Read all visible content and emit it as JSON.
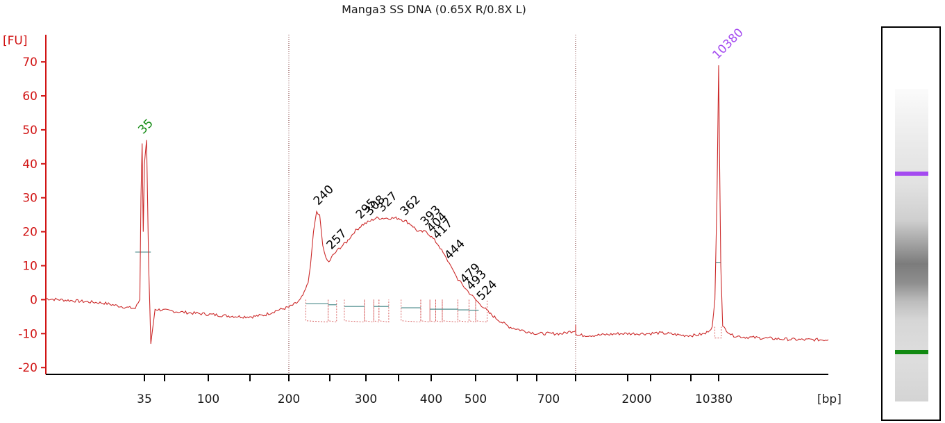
{
  "chart_data": {
    "type": "line",
    "title": "Manga3 SS DNA (0.65X R/0.8X L)",
    "ylabel": "[FU]",
    "xlabel": "[bp]",
    "ylim": [
      -22,
      78
    ],
    "y_ticks": [
      -20,
      -10,
      0,
      10,
      20,
      30,
      40,
      50,
      60,
      70
    ],
    "x_tick_labels": [
      "35",
      "100",
      "200",
      "300",
      "400",
      "500",
      "700",
      "2000",
      "10380"
    ],
    "colors": {
      "trace": "#cc2a2a",
      "axis": "#d11414",
      "lower_marker": "#128a12",
      "upper_marker": "#a44af0",
      "peak_label": "#000000"
    },
    "series": [
      {
        "values": [
          [
            25,
            0.3
          ],
          [
            35,
            -1.0
          ],
          [
            45,
            -1.7
          ],
          [
            55,
            -2.3
          ],
          [
            62,
            -2.6
          ],
          [
            66,
            0
          ],
          [
            67,
            30
          ],
          [
            68,
            46
          ],
          [
            69,
            20
          ],
          [
            70,
            40
          ],
          [
            71,
            47
          ],
          [
            72,
            10
          ],
          [
            73,
            -13
          ],
          [
            75,
            -2.8
          ],
          [
            80,
            -3.2
          ],
          [
            90,
            -3.8
          ],
          [
            100,
            -4.3
          ],
          [
            120,
            -4.7
          ],
          [
            140,
            -5.0
          ],
          [
            155,
            -5.0
          ],
          [
            170,
            -4.5
          ],
          [
            185,
            -3.2
          ],
          [
            200,
            -2.2
          ],
          [
            210,
            -1.0
          ],
          [
            215,
            0
          ],
          [
            220,
            2
          ],
          [
            225,
            5
          ],
          [
            228,
            10
          ],
          [
            232,
            20
          ],
          [
            236,
            26
          ],
          [
            240,
            25
          ],
          [
            244,
            16
          ],
          [
            248,
            12
          ],
          [
            252,
            11
          ],
          [
            257,
            13
          ],
          [
            265,
            15
          ],
          [
            275,
            17
          ],
          [
            285,
            20
          ],
          [
            295,
            22
          ],
          [
            305,
            23
          ],
          [
            315,
            24
          ],
          [
            327,
            24
          ],
          [
            340,
            24
          ],
          [
            350,
            24
          ],
          [
            362,
            23
          ],
          [
            370,
            22
          ],
          [
            380,
            20
          ],
          [
            393,
            20
          ],
          [
            404,
            18
          ],
          [
            417,
            16
          ],
          [
            430,
            13
          ],
          [
            444,
            10
          ],
          [
            460,
            6
          ],
          [
            479,
            3
          ],
          [
            493,
            1
          ],
          [
            510,
            -1
          ],
          [
            524,
            -2
          ],
          [
            545,
            -4
          ],
          [
            575,
            -6
          ],
          [
            610,
            -8
          ],
          [
            650,
            -9
          ],
          [
            700,
            -10
          ],
          [
            740,
            -10
          ],
          [
            760,
            -9
          ],
          [
            762,
            -7
          ],
          [
            764,
            -10
          ],
          [
            800,
            -10.5
          ],
          [
            900,
            -10.5
          ],
          [
            1000,
            -10.5
          ],
          [
            1200,
            -10.5
          ],
          [
            1500,
            -10.3
          ],
          [
            1800,
            -10.0
          ],
          [
            2000,
            -10.0
          ],
          [
            2300,
            -10.0
          ],
          [
            2600,
            -10.0
          ],
          [
            2900,
            -9.8
          ],
          [
            3200,
            -10.0
          ],
          [
            3600,
            -10.5
          ],
          [
            4000,
            -10.5
          ],
          [
            4300,
            -10.0
          ],
          [
            4500,
            -8
          ],
          [
            4580,
            0
          ],
          [
            4640,
            30
          ],
          [
            4690,
            69
          ],
          [
            4740,
            40
          ],
          [
            4800,
            10
          ],
          [
            4900,
            -8
          ],
          [
            5100,
            -9
          ],
          [
            5400,
            -10.5
          ],
          [
            6000,
            -11.0
          ],
          [
            7000,
            -11.3
          ],
          [
            8000,
            -11.6
          ],
          [
            9000,
            -11.8
          ],
          [
            10380,
            -11.8
          ]
        ]
      }
    ],
    "peaks": [
      {
        "label": "35",
        "x": 70,
        "y": 47,
        "color": "lower"
      },
      {
        "label": "240",
        "x": 240,
        "y": 26,
        "color": "black"
      },
      {
        "label": "257",
        "x": 257,
        "y": 13,
        "color": "black"
      },
      {
        "label": "295",
        "x": 295,
        "y": 22,
        "color": "black"
      },
      {
        "label": "308",
        "x": 308,
        "y": 23,
        "color": "black"
      },
      {
        "label": "327",
        "x": 327,
        "y": 24,
        "color": "black"
      },
      {
        "label": "362",
        "x": 362,
        "y": 23,
        "color": "black"
      },
      {
        "label": "393",
        "x": 393,
        "y": 20,
        "color": "black"
      },
      {
        "label": "404",
        "x": 404,
        "y": 18,
        "color": "black"
      },
      {
        "label": "417",
        "x": 417,
        "y": 16,
        "color": "black"
      },
      {
        "label": "444",
        "x": 444,
        "y": 10,
        "color": "black"
      },
      {
        "label": "479",
        "x": 479,
        "y": 3,
        "color": "black"
      },
      {
        "label": "493",
        "x": 493,
        "y": 1,
        "color": "black"
      },
      {
        "label": "524",
        "x": 524,
        "y": -2,
        "color": "black"
      },
      {
        "label": "10380",
        "x": 4690,
        "y": 69,
        "color": "upper"
      }
    ],
    "gel_bands": [
      {
        "marker": "upper",
        "level": 0.27
      },
      {
        "marker": "lower",
        "level": 0.843
      }
    ]
  }
}
